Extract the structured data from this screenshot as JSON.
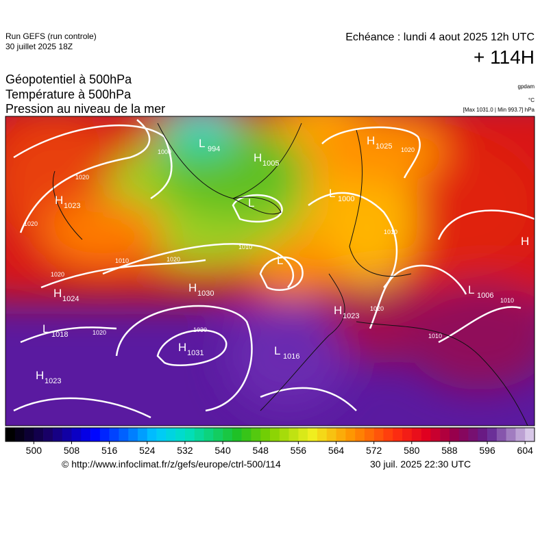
{
  "header": {
    "run": "Run GEFS (run controle)",
    "run_date": "30 juillet 2025 18Z",
    "valid": "Echéance : lundi 4 aout 2025 12h UTC",
    "lead": "+ 114H",
    "titles": [
      "Géopotentiel à 500hPa",
      "Température à 500hPa",
      "Pression au niveau de la mer"
    ],
    "units": [
      "gpdam",
      "°C",
      "[Max 1031.0 | Min 993.7] hPa"
    ]
  },
  "map": {
    "centers": [
      {
        "letter": "L",
        "value": "994"
      },
      {
        "letter": "H",
        "value": "1005"
      },
      {
        "letter": "H",
        "value": "1025"
      },
      {
        "letter": "H",
        "value": "1023"
      },
      {
        "letter": "L",
        "value": "1000"
      },
      {
        "letter": "L"
      },
      {
        "letter": "L"
      },
      {
        "letter": "H",
        "value": "1030"
      },
      {
        "letter": "H",
        "value": "1024"
      },
      {
        "letter": "L",
        "value": "1006"
      },
      {
        "letter": "H",
        "value": "1023"
      },
      {
        "letter": "L",
        "value": "1018"
      },
      {
        "letter": "H",
        "value": "1031"
      },
      {
        "letter": "L",
        "value": "1016"
      },
      {
        "letter": "H",
        "value": "1023"
      },
      {
        "letter": "H"
      }
    ],
    "isobar_labels": [
      "1000",
      "1020",
      "1020",
      "1010",
      "1020",
      "1010",
      "1020",
      "1020",
      "1030",
      "1020",
      "1010",
      "1020",
      "1010",
      "1010"
    ]
  },
  "colorbar": {
    "lim": [
      494,
      606
    ],
    "ticks": [
      500,
      508,
      516,
      524,
      532,
      540,
      548,
      556,
      564,
      572,
      580,
      588,
      596,
      604
    ]
  },
  "footer": {
    "source": "© http://www.infoclimat.fr/z/gefs/europe/ctrl-500/114",
    "generated": "30 juil. 2025 22:30 UTC"
  }
}
